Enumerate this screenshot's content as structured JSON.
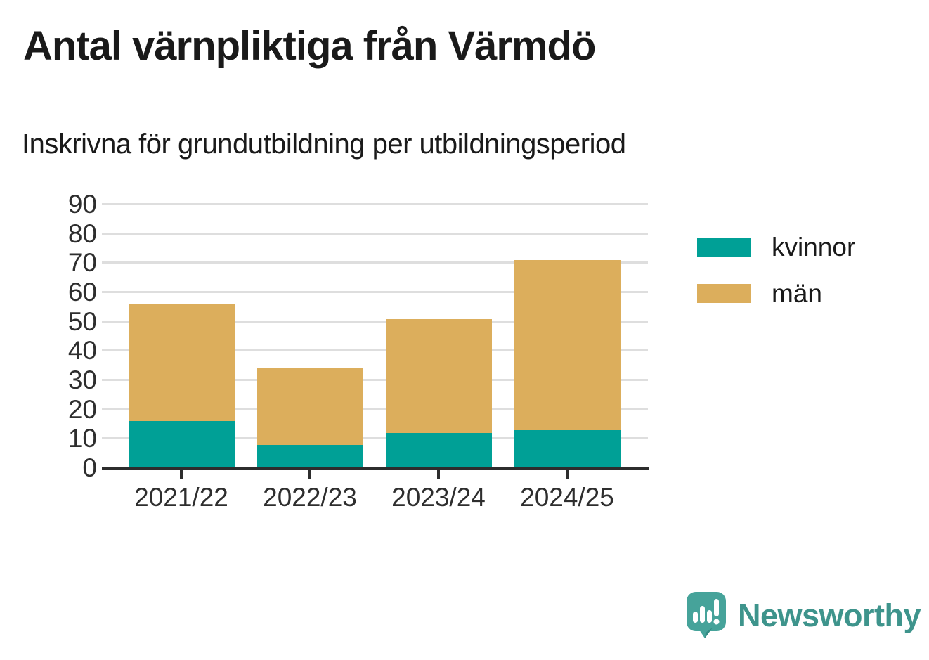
{
  "title": "Antal värnpliktiga från Värmdö",
  "subtitle": "Inskrivna för grundutbildning per utbildningsperiod",
  "chart_data": {
    "type": "bar",
    "stacked": true,
    "title": "Antal värnpliktiga från Värmdö",
    "subtitle": "Inskrivna för grundutbildning per utbildningsperiod",
    "categories": [
      "2021/22",
      "2022/23",
      "2023/24",
      "2024/25"
    ],
    "series": [
      {
        "name": "kvinnor",
        "color": "#00a096",
        "values": [
          16,
          8,
          12,
          13
        ]
      },
      {
        "name": "män",
        "color": "#dcae5c",
        "values": [
          40,
          26,
          39,
          58
        ]
      }
    ],
    "totals": [
      56,
      34,
      51,
      71
    ],
    "xlabel": "",
    "ylabel": "",
    "ylim": [
      0,
      90
    ],
    "yticks": [
      0,
      10,
      20,
      30,
      40,
      50,
      60,
      70,
      80,
      90
    ],
    "grid": true,
    "gridline_color": "#dedede",
    "axis_color": "#2d2d2d",
    "legend_position": "right"
  },
  "branding": {
    "logo_text": "Newsworthy",
    "logo_color": "#3e948c",
    "logo_icon": "newsworthy-speech-bubble-bar-chart-icon",
    "logo_icon_color": "#46a39a"
  }
}
